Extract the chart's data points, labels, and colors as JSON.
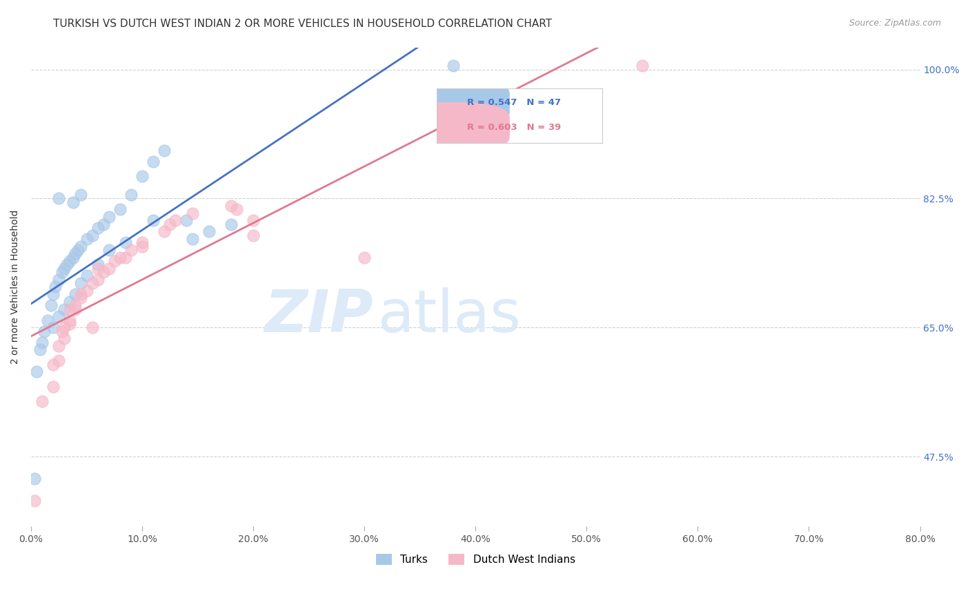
{
  "title": "TURKISH VS DUTCH WEST INDIAN 2 OR MORE VEHICLES IN HOUSEHOLD CORRELATION CHART",
  "source": "Source: ZipAtlas.com",
  "ylabel": "2 or more Vehicles in Household",
  "xlim": [
    0.0,
    80.0
  ],
  "ylim": [
    38.0,
    103.0
  ],
  "xticks": [
    0.0,
    10.0,
    20.0,
    30.0,
    40.0,
    50.0,
    60.0,
    70.0,
    80.0
  ],
  "ytick_labels": [
    "47.5%",
    "65.0%",
    "82.5%",
    "100.0%"
  ],
  "ytick_values": [
    47.5,
    65.0,
    82.5,
    100.0
  ],
  "legend_labels": [
    "Turks",
    "Dutch West Indians"
  ],
  "blue_color": "#a8c8e8",
  "pink_color": "#f5b8c8",
  "blue_line_color": "#4472c4",
  "pink_line_color": "#e07890",
  "turks_x": [
    0.3,
    0.5,
    0.8,
    1.0,
    1.2,
    1.5,
    1.8,
    2.0,
    2.2,
    2.5,
    2.8,
    3.0,
    3.2,
    3.5,
    3.8,
    4.0,
    4.2,
    4.5,
    5.0,
    5.5,
    6.0,
    6.5,
    7.0,
    8.0,
    9.0,
    10.0,
    11.0,
    12.0,
    14.0,
    16.0,
    18.0,
    2.0,
    2.5,
    3.0,
    3.5,
    4.0,
    4.5,
    5.0,
    6.0,
    7.0,
    8.5,
    11.0,
    14.5,
    2.5,
    3.8,
    4.5,
    38.0
  ],
  "turks_y": [
    44.5,
    59.0,
    62.0,
    63.0,
    64.5,
    66.0,
    68.0,
    69.5,
    70.5,
    71.5,
    72.5,
    73.0,
    73.5,
    74.0,
    74.5,
    75.0,
    75.5,
    76.0,
    77.0,
    77.5,
    78.5,
    79.0,
    80.0,
    81.0,
    83.0,
    85.5,
    87.5,
    89.0,
    79.5,
    78.0,
    79.0,
    65.0,
    66.5,
    67.5,
    68.5,
    69.5,
    71.0,
    72.0,
    73.5,
    75.5,
    76.5,
    79.5,
    77.0,
    82.5,
    82.0,
    83.0,
    100.5
  ],
  "dutch_x": [
    0.3,
    1.0,
    2.0,
    2.5,
    3.0,
    3.5,
    4.0,
    4.5,
    5.0,
    6.0,
    7.0,
    8.5,
    10.0,
    12.0,
    14.5,
    18.0,
    20.0,
    2.5,
    3.5,
    4.5,
    6.5,
    8.0,
    10.0,
    12.5,
    18.5,
    2.0,
    4.0,
    7.5,
    13.0,
    3.0,
    5.5,
    9.0,
    30.0,
    3.5,
    6.0,
    55.0,
    5.5,
    20.0,
    2.8
  ],
  "dutch_y": [
    41.5,
    55.0,
    57.0,
    60.5,
    63.5,
    65.5,
    67.5,
    69.0,
    70.0,
    71.5,
    73.0,
    74.5,
    76.0,
    78.0,
    80.5,
    81.5,
    77.5,
    62.5,
    66.0,
    69.5,
    72.5,
    74.5,
    76.5,
    79.0,
    81.0,
    60.0,
    68.0,
    74.0,
    79.5,
    65.0,
    71.0,
    75.5,
    74.5,
    67.5,
    73.0,
    100.5,
    65.0,
    79.5,
    64.5
  ],
  "watermark_zip": "ZIP",
  "watermark_atlas": "atlas",
  "watermark_color": "#ddeaf7",
  "background_color": "#ffffff",
  "grid_color": "#cccccc",
  "title_fontsize": 11,
  "axis_label_fontsize": 10,
  "tick_fontsize": 10,
  "right_tick_color": "#4472c4"
}
